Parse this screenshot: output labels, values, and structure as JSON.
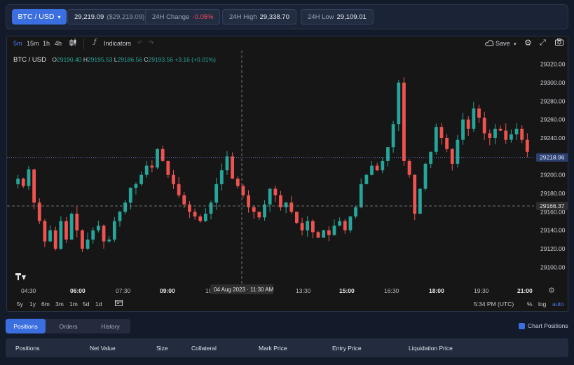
{
  "header": {
    "pair": "BTC / USD",
    "price": "29,219.09",
    "price_usd": "($29,219.09)",
    "change_label": "24H Change",
    "change_value": "-0.05%",
    "high_label": "24H High",
    "high_value": "29,338.70",
    "low_label": "24H Low",
    "low_value": "29,109.01"
  },
  "toolbar": {
    "intervals": [
      "5m",
      "15m",
      "1h",
      "4h"
    ],
    "indicators": "Indicators",
    "save": "Save"
  },
  "legend": {
    "symbol": "BTC / USD",
    "o_label": "O",
    "o": "29190.40",
    "h_label": "H",
    "h": "29195.53",
    "l_label": "L",
    "l": "29186.56",
    "c_label": "C",
    "c": "29193.56",
    "change": "+3.16 (+0.01%)"
  },
  "chart_data": {
    "type": "candlestick",
    "title": "",
    "y_ticks": [
      29320,
      29300,
      29280,
      29260,
      29240,
      29220,
      29200,
      29180,
      29160,
      29140,
      29120,
      29100
    ],
    "y_tick_labels": [
      "29320.00",
      "29300.00",
      "29280.00",
      "29260.00",
      "29240.00",
      "29220.00",
      "29200.00",
      "29180.00",
      "29160.00",
      "29140.00",
      "29120.00",
      "29100.00"
    ],
    "ylim": [
      29092,
      29328
    ],
    "x_tick_labels": [
      "04:30",
      "06:00",
      "07:30",
      "09:00",
      "10:30",
      "12:00",
      "13:30",
      "15:00",
      "16:30",
      "18:00",
      "19:30",
      "21:00"
    ],
    "crosshair_price": "29166.37",
    "crosshair_time": "04 Aug 2023 · 11:30 AM",
    "last_price": "29218.96",
    "close_path": [
      29190,
      29196,
      29188,
      29206,
      29170,
      29150,
      29128,
      29140,
      29120,
      29150,
      29130,
      29158,
      29140,
      29120,
      29130,
      29140,
      29145,
      29128,
      29130,
      29150,
      29160,
      29170,
      29186,
      29190,
      29200,
      29210,
      29208,
      29228,
      29215,
      29200,
      29190,
      29178,
      29168,
      29160,
      29155,
      29150,
      29158,
      29170,
      29190,
      29205,
      29220,
      29196,
      29188,
      29178,
      29165,
      29160,
      29154,
      29168,
      29185,
      29178,
      29165,
      29170,
      29160,
      29148,
      29140,
      29150,
      29138,
      29132,
      29140,
      29135,
      29145,
      29150,
      29140,
      29155,
      29165,
      29190,
      29200,
      29210,
      29205,
      29215,
      29230,
      29255,
      29300,
      29215,
      29200,
      29158,
      29185,
      29212,
      29225,
      29252,
      29240,
      29228,
      29212,
      29238,
      29260,
      29250,
      29272,
      29262,
      29245,
      29240,
      29250,
      29248,
      29238,
      29244,
      29250,
      29238,
      29225
    ]
  },
  "bottom_timeframes": [
    "5y",
    "1y",
    "6m",
    "3m",
    "1m",
    "5d",
    "1d"
  ],
  "footer": {
    "time": "5:34 PM (UTC)",
    "percent": "%",
    "log": "log",
    "auto": "auto"
  },
  "tabs": [
    "Positions",
    "Orders",
    "History"
  ],
  "chart_positions_label": "Chart Positions",
  "table_headers": [
    "Positions",
    "Net Value",
    "Size",
    "Collateral",
    "Mark Price",
    "Entry Price",
    "Liquidation Price"
  ],
  "colors": {
    "up": "#26a69a",
    "down": "#ef5350",
    "accent": "#3b6fe0"
  }
}
